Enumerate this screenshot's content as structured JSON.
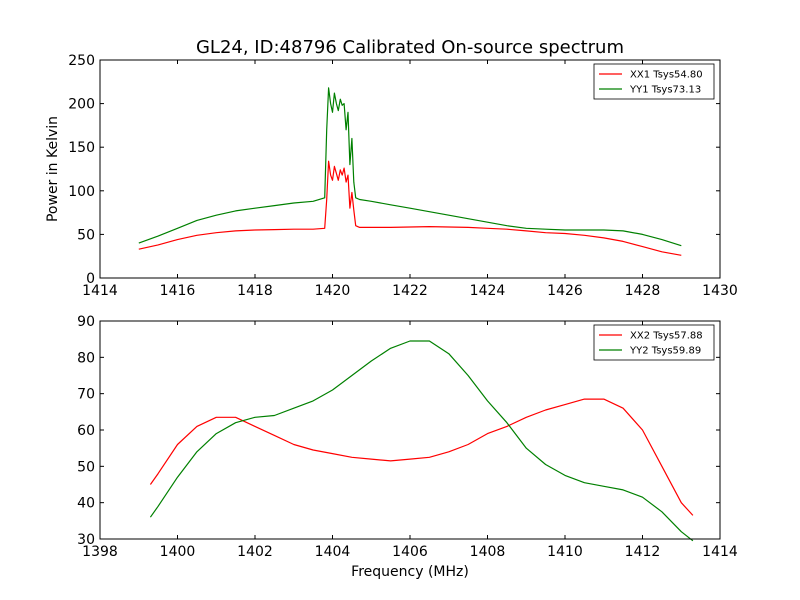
{
  "chart_data": [
    {
      "type": "line",
      "title": "GL24, ID:48796 Calibrated On-source spectrum",
      "xlabel": "",
      "ylabel": "Power in Kelvin",
      "xlim": [
        1414,
        1430
      ],
      "ylim": [
        0,
        250
      ],
      "xticks": [
        1414,
        1416,
        1418,
        1420,
        1422,
        1424,
        1426,
        1428,
        1430
      ],
      "yticks": [
        0,
        50,
        100,
        150,
        200,
        250
      ],
      "grid": false,
      "legend_position": "top-right",
      "series": [
        {
          "name": "XX1 Tsys54.80",
          "color": "#ff0000",
          "points": [
            [
              1415,
              33
            ],
            [
              1415.5,
              38
            ],
            [
              1416,
              44
            ],
            [
              1416.5,
              49
            ],
            [
              1417,
              52
            ],
            [
              1417.5,
              54
            ],
            [
              1418,
              55
            ],
            [
              1418.5,
              55.5
            ],
            [
              1419,
              56
            ],
            [
              1419.5,
              56
            ],
            [
              1419.8,
              57
            ],
            [
              1419.85,
              90
            ],
            [
              1419.9,
              134
            ],
            [
              1419.95,
              118
            ],
            [
              1420.0,
              112
            ],
            [
              1420.05,
              128
            ],
            [
              1420.1,
              120
            ],
            [
              1420.15,
              112
            ],
            [
              1420.2,
              124
            ],
            [
              1420.25,
              118
            ],
            [
              1420.3,
              126
            ],
            [
              1420.35,
              110
            ],
            [
              1420.4,
              118
            ],
            [
              1420.45,
              80
            ],
            [
              1420.5,
              98
            ],
            [
              1420.55,
              78
            ],
            [
              1420.6,
              60
            ],
            [
              1420.7,
              58
            ],
            [
              1421,
              58
            ],
            [
              1421.5,
              58
            ],
            [
              1422,
              58.5
            ],
            [
              1422.5,
              59
            ],
            [
              1423,
              58.5
            ],
            [
              1423.5,
              58
            ],
            [
              1424,
              57
            ],
            [
              1424.5,
              56
            ],
            [
              1425,
              54
            ],
            [
              1425.5,
              52
            ],
            [
              1426,
              51
            ],
            [
              1426.5,
              49
            ],
            [
              1427,
              46
            ],
            [
              1427.5,
              42
            ],
            [
              1428,
              36
            ],
            [
              1428.5,
              30
            ],
            [
              1429,
              26
            ]
          ]
        },
        {
          "name": "YY1 Tsys73.13",
          "color": "#008000",
          "points": [
            [
              1415,
              40
            ],
            [
              1415.5,
              48
            ],
            [
              1416,
              57
            ],
            [
              1416.5,
              66
            ],
            [
              1417,
              72
            ],
            [
              1417.5,
              77
            ],
            [
              1418,
              80
            ],
            [
              1418.5,
              83
            ],
            [
              1419,
              86
            ],
            [
              1419.5,
              88
            ],
            [
              1419.8,
              92
            ],
            [
              1419.85,
              170
            ],
            [
              1419.9,
              218
            ],
            [
              1419.95,
              200
            ],
            [
              1420.0,
              190
            ],
            [
              1420.05,
              212
            ],
            [
              1420.1,
              200
            ],
            [
              1420.15,
              192
            ],
            [
              1420.2,
              205
            ],
            [
              1420.25,
              198
            ],
            [
              1420.3,
              200
            ],
            [
              1420.35,
              170
            ],
            [
              1420.4,
              190
            ],
            [
              1420.45,
              130
            ],
            [
              1420.5,
              160
            ],
            [
              1420.55,
              110
            ],
            [
              1420.6,
              92
            ],
            [
              1420.7,
              90
            ],
            [
              1421,
              88
            ],
            [
              1421.5,
              84
            ],
            [
              1422,
              80
            ],
            [
              1422.5,
              76
            ],
            [
              1423,
              72
            ],
            [
              1423.5,
              68
            ],
            [
              1424,
              64
            ],
            [
              1424.5,
              60
            ],
            [
              1425,
              57
            ],
            [
              1425.5,
              56
            ],
            [
              1426,
              55
            ],
            [
              1426.5,
              55
            ],
            [
              1427,
              55
            ],
            [
              1427.5,
              54
            ],
            [
              1428,
              50
            ],
            [
              1428.5,
              44
            ],
            [
              1429,
              37
            ]
          ]
        }
      ]
    },
    {
      "type": "line",
      "title": "",
      "xlabel": "Frequency (MHz)",
      "ylabel": "",
      "xlim": [
        1398,
        1414
      ],
      "ylim": [
        30,
        90
      ],
      "xticks": [
        1398,
        1400,
        1402,
        1404,
        1406,
        1408,
        1410,
        1412,
        1414
      ],
      "yticks": [
        30,
        40,
        50,
        60,
        70,
        80,
        90
      ],
      "grid": false,
      "legend_position": "top-right",
      "series": [
        {
          "name": "XX2 Tsys57.88",
          "color": "#ff0000",
          "points": [
            [
              1399.3,
              45
            ],
            [
              1399.5,
              48
            ],
            [
              1400,
              56
            ],
            [
              1400.5,
              61
            ],
            [
              1401,
              63.5
            ],
            [
              1401.5,
              63.5
            ],
            [
              1402,
              61
            ],
            [
              1402.5,
              58.5
            ],
            [
              1403,
              56
            ],
            [
              1403.5,
              54.5
            ],
            [
              1404,
              53.5
            ],
            [
              1404.5,
              52.5
            ],
            [
              1405,
              52
            ],
            [
              1405.5,
              51.5
            ],
            [
              1406,
              52
            ],
            [
              1406.5,
              52.5
            ],
            [
              1407,
              54
            ],
            [
              1407.5,
              56
            ],
            [
              1408,
              59
            ],
            [
              1408.5,
              61
            ],
            [
              1409,
              63.5
            ],
            [
              1409.5,
              65.5
            ],
            [
              1410,
              67
            ],
            [
              1410.5,
              68.5
            ],
            [
              1411,
              68.5
            ],
            [
              1411.5,
              66
            ],
            [
              1412,
              60
            ],
            [
              1412.5,
              50
            ],
            [
              1413,
              40
            ],
            [
              1413.3,
              36.5
            ]
          ]
        },
        {
          "name": "YY2 Tsys59.89",
          "color": "#008000",
          "points": [
            [
              1399.3,
              36
            ],
            [
              1399.5,
              39
            ],
            [
              1400,
              47
            ],
            [
              1400.5,
              54
            ],
            [
              1401,
              59
            ],
            [
              1401.5,
              62
            ],
            [
              1402,
              63.5
            ],
            [
              1402.5,
              64
            ],
            [
              1403,
              66
            ],
            [
              1403.5,
              68
            ],
            [
              1404,
              71
            ],
            [
              1404.5,
              75
            ],
            [
              1405,
              79
            ],
            [
              1405.5,
              82.5
            ],
            [
              1406,
              84.5
            ],
            [
              1406.5,
              84.5
            ],
            [
              1407,
              81
            ],
            [
              1407.5,
              75
            ],
            [
              1408,
              68
            ],
            [
              1408.5,
              62
            ],
            [
              1409,
              55
            ],
            [
              1409.5,
              50.5
            ],
            [
              1410,
              47.5
            ],
            [
              1410.5,
              45.5
            ],
            [
              1411,
              44.5
            ],
            [
              1411.5,
              43.5
            ],
            [
              1412,
              41.5
            ],
            [
              1412.5,
              37.5
            ],
            [
              1413,
              32
            ],
            [
              1413.3,
              29.5
            ]
          ]
        }
      ]
    }
  ]
}
